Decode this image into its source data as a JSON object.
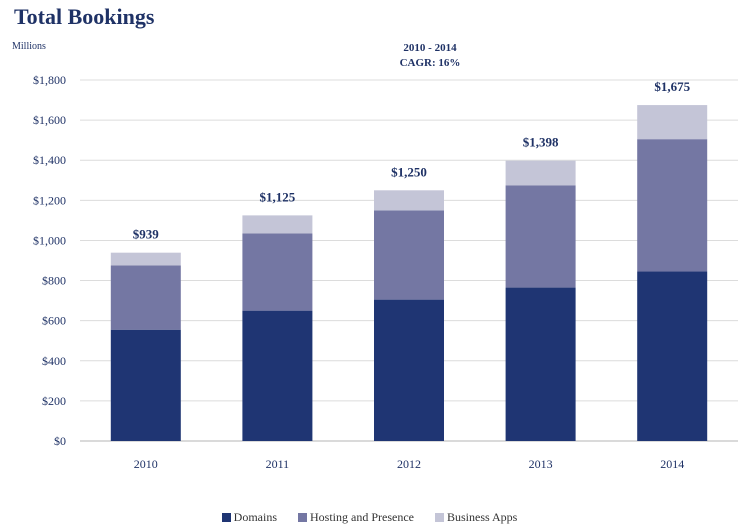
{
  "title": "Total Bookings",
  "unit_label": "Millions",
  "annotation": {
    "line1": "2010 - 2014",
    "line2": "CAGR: 16%"
  },
  "chart_data": {
    "type": "bar",
    "stacked": true,
    "categories": [
      "2010",
      "2011",
      "2012",
      "2013",
      "2014"
    ],
    "series": [
      {
        "name": "Domains",
        "color": "#1f3573",
        "values": [
          555,
          650,
          705,
          765,
          845
        ]
      },
      {
        "name": "Hosting and Presence",
        "color": "#7477a3",
        "values": [
          320,
          385,
          445,
          510,
          660
        ]
      },
      {
        "name": "Business Apps",
        "color": "#c4c5d7",
        "values": [
          64,
          90,
          100,
          123,
          170
        ]
      }
    ],
    "totals": [
      939,
      1125,
      1250,
      1398,
      1675
    ],
    "total_labels": [
      "$939",
      "$1,125",
      "$1,250",
      "$1,398",
      "$1,675"
    ],
    "ylim": [
      0,
      1800
    ],
    "yticks": [
      0,
      200,
      400,
      600,
      800,
      1000,
      1200,
      1400,
      1600,
      1800
    ],
    "ytick_labels": [
      "$0",
      "$200",
      "$400",
      "$600",
      "$800",
      "$1,000",
      "$1,200",
      "$1,400",
      "$1,600",
      "$1,800"
    ],
    "grid": true,
    "legend_position": "bottom"
  }
}
